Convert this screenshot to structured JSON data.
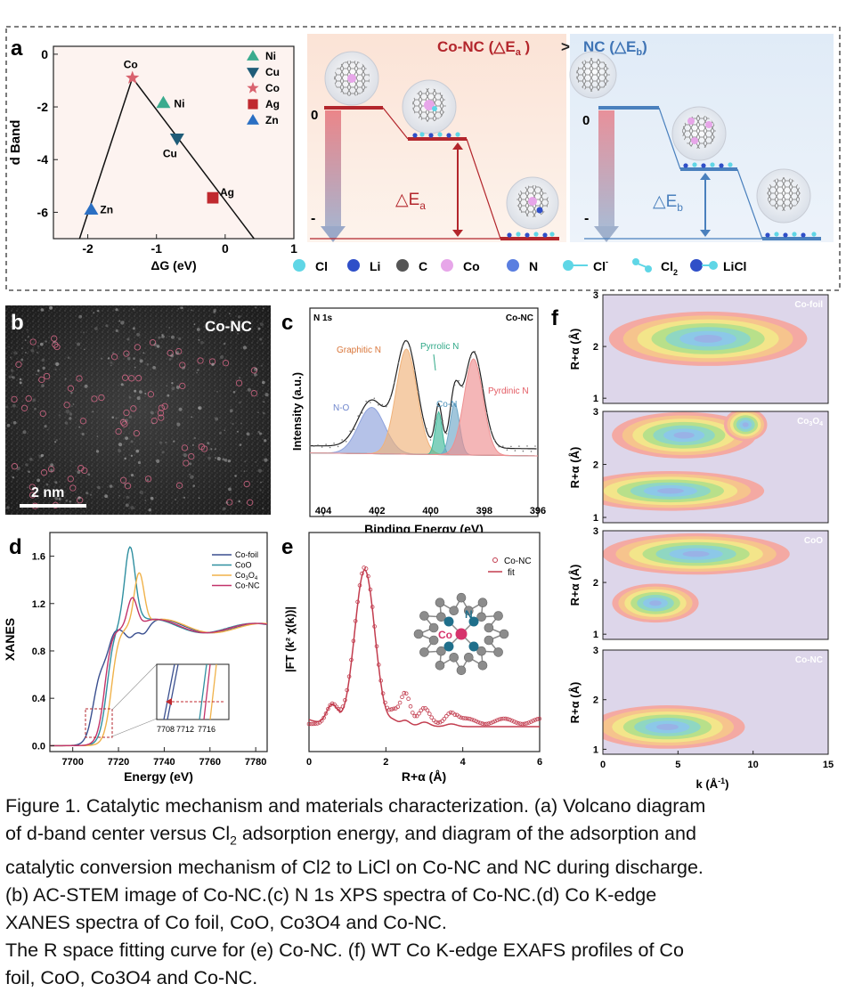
{
  "panel_labels": {
    "a": "a",
    "b": "b",
    "c": "c",
    "d": "d",
    "e": "e",
    "f": "f"
  },
  "panel_a": {
    "chart_data": {
      "type": "scatter",
      "xlabel": "ΔG (eV)",
      "ylabel": "d Band",
      "xlim": [
        -2.5,
        1
      ],
      "ylim": [
        -7,
        0.3
      ],
      "xticks": [
        "-2",
        "-1",
        "0",
        "1"
      ],
      "yticks": [
        "0",
        "-2",
        "-4",
        "-6"
      ],
      "points": [
        {
          "name": "Co",
          "x": -1.35,
          "y": -0.9,
          "marker": "star",
          "color": "#d9626e"
        },
        {
          "name": "Ni",
          "x": -0.9,
          "y": -1.85,
          "marker": "triangle-up",
          "color": "#3aab8e"
        },
        {
          "name": "Cu",
          "x": -0.7,
          "y": -3.2,
          "marker": "triangle-down",
          "color": "#1f5c78"
        },
        {
          "name": "Ag",
          "x": -0.18,
          "y": -5.45,
          "marker": "square",
          "color": "#c0292f"
        },
        {
          "name": "Zn",
          "x": -1.95,
          "y": -5.9,
          "marker": "triangle-up",
          "color": "#2b6fc3"
        }
      ],
      "legend": [
        "Ni",
        "Cu",
        "Co",
        "Ag",
        "Zn"
      ],
      "legend_position": "top-right"
    },
    "mechanism": {
      "title_left": "Co-NC (△E",
      "title_left_sub": "a",
      "title_compare": ">",
      "title_right": "NC (△E",
      "title_right_sub": "b",
      "zero_label": "0",
      "minus_label": "-",
      "delta_a": "△E",
      "delta_a_sub": "a",
      "delta_b": "△E",
      "delta_b_sub": "b"
    },
    "legend_species": [
      {
        "label": "Cl",
        "color": "#5fd6e6"
      },
      {
        "label": "Li",
        "color": "#2f4fc8"
      },
      {
        "label": "C",
        "color": "#555555"
      },
      {
        "label": "Co",
        "color": "#e7a6e9"
      },
      {
        "label": "N",
        "color": "#5a7ee0"
      },
      {
        "label": "Cl",
        "sup": "-",
        "color": "#5fd6e6"
      },
      {
        "label": "Cl",
        "sub": "2",
        "color": "#5fd6e6"
      },
      {
        "label": "LiCl",
        "color": "#2f4fc8"
      }
    ]
  },
  "panel_b": {
    "sample": "Co-NC",
    "scalebar": "2 nm"
  },
  "panel_c": {
    "chart_data": {
      "type": "line",
      "title_left": "N 1s",
      "title_right": "Co-NC",
      "xlabel": "Binding Energy (eV)",
      "ylabel": "Intensity (a.u.)",
      "xlim": [
        404.5,
        396
      ],
      "xticks": [
        "404",
        "402",
        "400",
        "398",
        "396"
      ],
      "peaks": [
        {
          "name": "N-O",
          "center": 402.2,
          "color": "#8ea2dc"
        },
        {
          "name": "Graphitic N",
          "center": 400.9,
          "color": "#f0b27a"
        },
        {
          "name": "Pyrrolic N",
          "center": 399.7,
          "color": "#3fb89a"
        },
        {
          "name": "Co-N",
          "center": 399.1,
          "color": "#6fa8c8"
        },
        {
          "name": "Pyrdinic N",
          "center": 398.4,
          "color": "#ee8f90"
        }
      ]
    }
  },
  "panel_d": {
    "chart_data": {
      "type": "line",
      "xlabel": "Energy (eV)",
      "ylabel": "XANES",
      "xlim": [
        7690,
        7785
      ],
      "ylim": [
        -0.05,
        1.8
      ],
      "xticks": [
        "7700",
        "7720",
        "7740",
        "7760",
        "7780"
      ],
      "yticks": [
        "0.0",
        "0.4",
        "0.8",
        "1.2",
        "1.6"
      ],
      "inset_xticks": [
        "7708",
        "7712",
        "7716"
      ],
      "series": [
        {
          "name": "Co-foil",
          "color": "#3a4f8f"
        },
        {
          "name": "CoO",
          "color": "#2f8fa0"
        },
        {
          "name": "Co3O4",
          "label": "Co",
          "sub": "3",
          "label2": "O",
          "sub2": "4",
          "color": "#f0b24a"
        },
        {
          "name": "Co-NC",
          "color": "#c2336a"
        }
      ],
      "legend_position": "top-right"
    }
  },
  "panel_e": {
    "chart_data": {
      "type": "line",
      "xlabel": "R+α (Å)",
      "ylabel": "|FT (k² χ(k))|",
      "xlim": [
        0,
        6
      ],
      "xticks": [
        "0",
        "2",
        "4",
        "6"
      ],
      "series": [
        {
          "name": "Co-NC",
          "style": "circles"
        },
        {
          "name": "fit",
          "style": "line"
        }
      ],
      "inset_labels": {
        "n": "N",
        "co": "Co"
      }
    }
  },
  "panel_f": {
    "chart_data": {
      "type": "heatmap",
      "xlabel": "k (Å",
      "xlabel_sup": "-1",
      "xlabel_end": ")",
      "ylabel": "R+α (Å)",
      "xticks": [
        "0",
        "5",
        "10",
        "15"
      ],
      "yticks": [
        "3",
        "2",
        "1"
      ],
      "panels": [
        {
          "label": "Co-foil"
        },
        {
          "label": "Co",
          "sub": "3",
          "label2": "O",
          "sub2": "4"
        },
        {
          "label": "CoO"
        },
        {
          "label": "Co-NC"
        }
      ]
    }
  },
  "caption": {
    "line1": "Figure 1. Catalytic mechanism and materials characterization. (a) Volcano diagram",
    "line2a": "of d-band center versus Cl",
    "line2sub": "2",
    "line2b": " adsorption energy, and diagram of the adsorption and",
    "line3": "catalytic conversion mechanism of Cl2 to LiCl on Co-NC and NC during discharge.",
    "line4": "(b)  AC-STEM image of Co-NC.(c) N 1s XPS spectra of Co-NC.(d) Co K-edge",
    "line5": "XANES spectra of Co foil, CoO, Co3O4 and Co-NC.",
    "line6": "The R space fitting curve for (e) Co-NC. (f) WT Co K-edge EXAFS profiles of Co",
    "line7": "foil, CoO, Co3O4 and Co-NC."
  }
}
